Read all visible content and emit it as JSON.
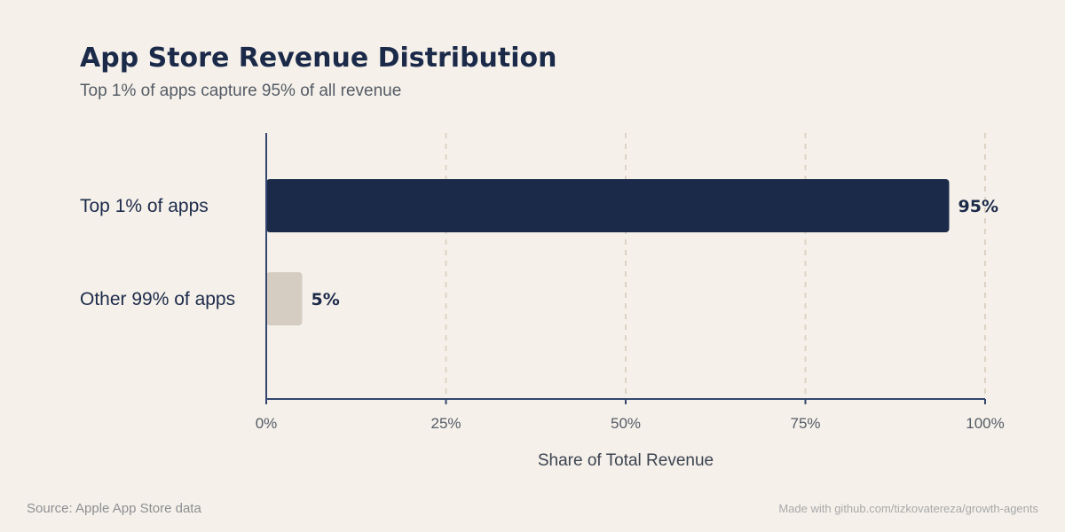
{
  "chart_data": {
    "type": "bar",
    "orientation": "horizontal",
    "title": "App Store Revenue Distribution",
    "subtitle": "Top 1% of apps capture 95% of all revenue",
    "categories": [
      "Top 1% of apps",
      "Other 99% of apps"
    ],
    "values": [
      95,
      5
    ],
    "value_labels": [
      "95%",
      "5%"
    ],
    "bar_colors": [
      "#1c2a4a",
      "#d5cdc2"
    ],
    "xlabel": "Share of Total Revenue",
    "ylabel": "",
    "xlim": [
      0,
      100
    ],
    "xticks": [
      0,
      25,
      50,
      75,
      100
    ],
    "xtick_labels": [
      "0%",
      "25%",
      "50%",
      "75%",
      "100%"
    ],
    "grid": "vertical-dashed",
    "legend": "none"
  },
  "footer": {
    "source": "Source: Apple App Store data",
    "credit": "Made with github.com/tizkovatereza/growth-agents"
  },
  "colors": {
    "background": "#f5f1ea",
    "axis": "#34466e",
    "grid": "#ddd3c4",
    "text_dark": "#1c2a4a",
    "text_muted": "#555b66"
  }
}
